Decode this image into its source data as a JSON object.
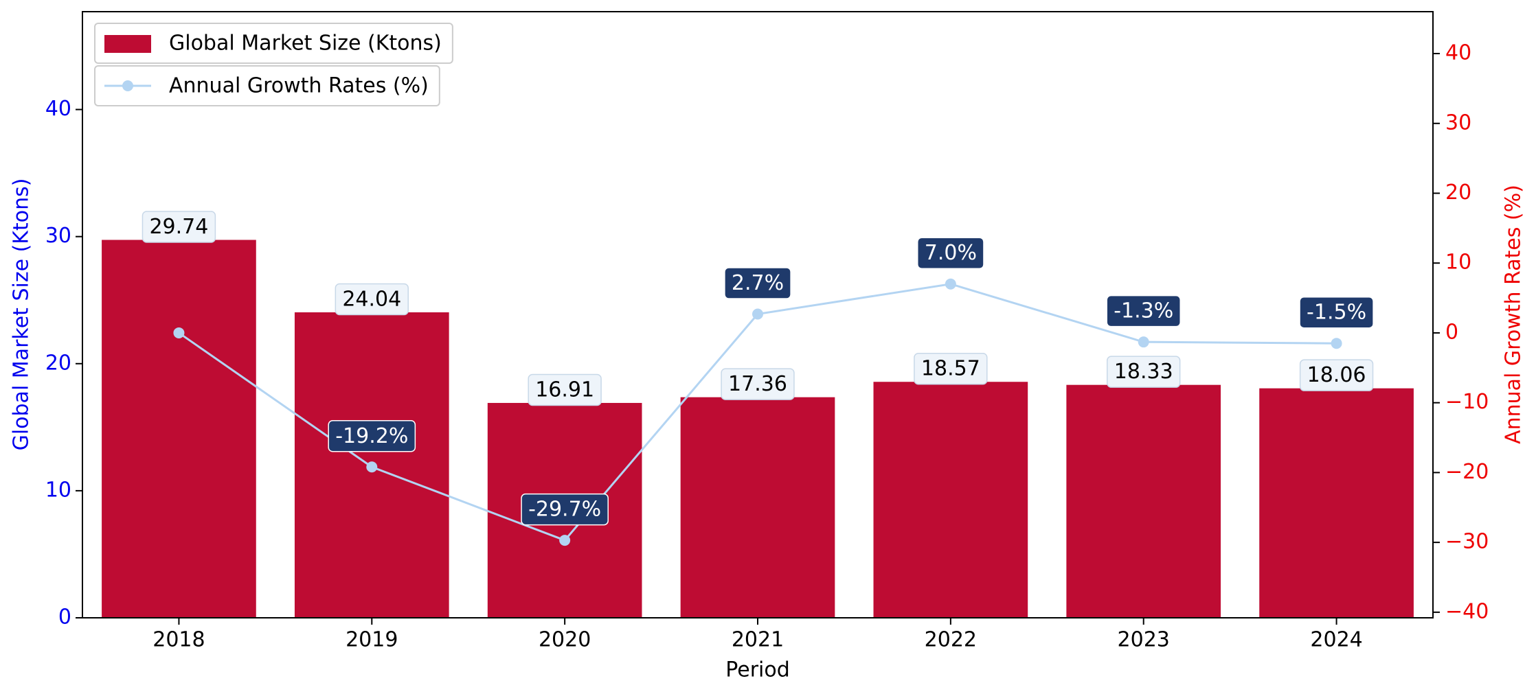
{
  "chart_data": {
    "type": "combo",
    "categories": [
      "2018",
      "2019",
      "2020",
      "2021",
      "2022",
      "2023",
      "2024"
    ],
    "x_label": "Period",
    "y_label": "Global Market Size (Ktons)",
    "y2_label": "Annual Growth Rates (%)",
    "series": [
      {
        "name": "Global Market Size (Ktons)",
        "type": "bar",
        "color": "#be0c33",
        "values": [
          29.74,
          24.04,
          16.91,
          17.36,
          18.57,
          18.33,
          18.06
        ]
      },
      {
        "name": "Annual Growth Rates (%)",
        "type": "line",
        "axis": "y2",
        "color": "#b3d4f2",
        "values": [
          0,
          -19.2,
          -29.7,
          2.7,
          7.0,
          -1.3,
          -1.5
        ],
        "value_labels": [
          null,
          "-19.2%",
          "-29.7%",
          "2.7%",
          "7.0%",
          "-1.3%",
          "-1.5%"
        ]
      }
    ],
    "ylim": [
      0,
      47.7
    ],
    "yticks": [
      0,
      10,
      20,
      30,
      40
    ],
    "y2lim": [
      -40.8,
      46
    ],
    "y2ticks": [
      {
        "value": -40,
        "label": "−40"
      },
      {
        "value": -30,
        "label": "−30"
      },
      {
        "value": -20,
        "label": "−20"
      },
      {
        "value": -10,
        "label": "−10"
      },
      0,
      10,
      20,
      30,
      40
    ],
    "y_color": "#0000ee",
    "y2_color": "#ee0000",
    "grid": false,
    "legend": "upper left"
  }
}
